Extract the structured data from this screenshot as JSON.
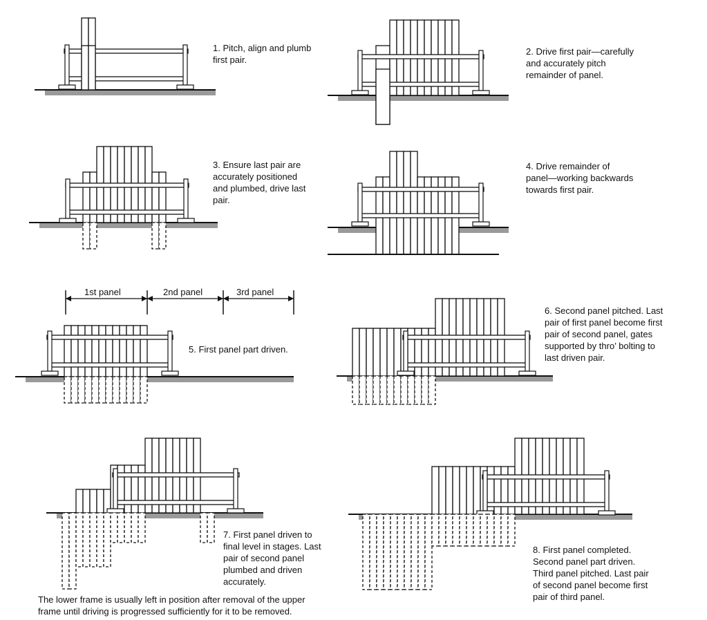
{
  "steps": {
    "s1": "1. Pitch, align and plumb\nfirst pair.",
    "s2": "2. Drive first pair—carefully\nand accurately pitch\nremainder of panel.",
    "s3": "3. Ensure last pair are\naccurately positioned\nand plumbed, drive last\npair.",
    "s4": "4. Drive remainder of\npanel—working backwards\ntowards first pair.",
    "s5": "5. First panel part driven.",
    "s6": "6. Second panel pitched. Last\npair of first panel become first\npair of second panel, gates\nsupported by thro’ bolting to\nlast driven pair.",
    "s7": "7. First panel driven to\nfinal level in stages. Last\npair of second panel\nplumbed and driven\naccurately.",
    "s8": "8. First panel completed.\nSecond panel part driven.\nThird panel pitched. Last pair\nof second panel become first\npair of third panel."
  },
  "panels": {
    "first": "1st panel",
    "second": "2nd panel",
    "third": "3rd panel"
  },
  "footnote": "The lower frame is usually left in position after removal of the upper\nframe until driving is progressed sufficiently for it to be removed.",
  "colors": {
    "ink": "#111111",
    "ground": "#9a9a9a",
    "background": "#ffffff"
  }
}
